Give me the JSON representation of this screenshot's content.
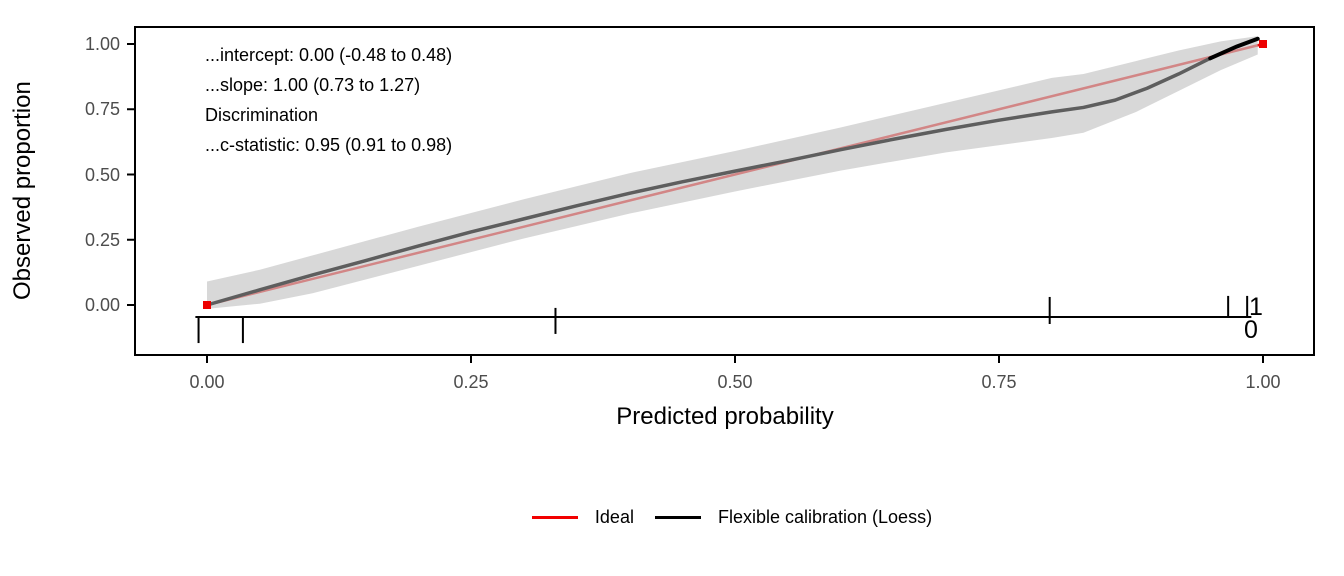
{
  "chart_data": {
    "type": "line",
    "title": "",
    "xlabel": "Predicted probability",
    "ylabel": "Observed proportion",
    "xlim": [
      0,
      1
    ],
    "ylim": [
      0,
      1
    ],
    "grid": "off",
    "legend_position": "bottom",
    "x_ticks": [
      {
        "value": 0.0,
        "label": "0.00"
      },
      {
        "value": 0.25,
        "label": "0.25"
      },
      {
        "value": 0.5,
        "label": "0.50"
      },
      {
        "value": 0.75,
        "label": "0.75"
      },
      {
        "value": 1.0,
        "label": "1.00"
      }
    ],
    "y_ticks": [
      {
        "value": 0.0,
        "label": "0.00"
      },
      {
        "value": 0.25,
        "label": "0.25"
      },
      {
        "value": 0.5,
        "label": "0.50"
      },
      {
        "value": 0.75,
        "label": "0.75"
      },
      {
        "value": 1.0,
        "label": "1.00"
      }
    ],
    "annotation": [
      "...intercept: 0.00 (-0.48 to 0.48)",
      "...slope: 1.00 (0.73 to 1.27)",
      "Discrimination",
      "...c-statistic: 0.95 (0.91 to 0.98)"
    ],
    "series": [
      {
        "name": "Ideal",
        "color": "#ed0000",
        "width": 2.5,
        "x": [
          0,
          1
        ],
        "y": [
          0,
          1
        ],
        "endpoints": [
          [
            0,
            0
          ],
          [
            1,
            1
          ]
        ]
      },
      {
        "name": "Flexible calibration (Loess)",
        "color": "#5e5e5e",
        "width": 3.5,
        "x": [
          0.0,
          0.05,
          0.1,
          0.15,
          0.2,
          0.25,
          0.3,
          0.35,
          0.4,
          0.45,
          0.5,
          0.55,
          0.6,
          0.65,
          0.7,
          0.75,
          0.8,
          0.83,
          0.86,
          0.89,
          0.92,
          0.95,
          0.975,
          0.995
        ],
        "y": [
          0.0,
          0.058,
          0.115,
          0.17,
          0.226,
          0.28,
          0.33,
          0.38,
          0.428,
          0.472,
          0.513,
          0.553,
          0.595,
          0.635,
          0.673,
          0.708,
          0.74,
          0.757,
          0.785,
          0.83,
          0.885,
          0.945,
          0.99,
          1.02
        ]
      }
    ],
    "tip_segment": {
      "color": "#000000",
      "width": 4,
      "x": [
        0.95,
        0.975,
        0.995
      ],
      "y": [
        0.945,
        0.99,
        1.02
      ]
    },
    "ci_band": {
      "color": "rgba(197,197,197,0.68)",
      "x": [
        0.0,
        0.05,
        0.1,
        0.2,
        0.3,
        0.4,
        0.5,
        0.6,
        0.7,
        0.8,
        0.83,
        0.88,
        0.92,
        0.96,
        0.995
      ],
      "upper": [
        0.09,
        0.135,
        0.19,
        0.3,
        0.405,
        0.505,
        0.59,
        0.68,
        0.775,
        0.87,
        0.885,
        0.935,
        0.975,
        1.01,
        1.03
      ],
      "lower": [
        -0.015,
        0.005,
        0.045,
        0.15,
        0.255,
        0.35,
        0.435,
        0.515,
        0.585,
        0.64,
        0.66,
        0.74,
        0.82,
        0.9,
        0.96
      ]
    },
    "rug": {
      "baseline": -0.046,
      "extent": [
        -0.011,
        0.989
      ],
      "event_label": "1",
      "nonevent_label": "0",
      "events": [
        {
          "x": 0.33,
          "h": 0.031
        },
        {
          "x": 0.798,
          "h": 0.073
        },
        {
          "x": 0.967,
          "h": 0.077
        },
        {
          "x": 0.985,
          "h": 0.077
        }
      ],
      "nonevents": [
        {
          "x": -0.008,
          "h": 0.096
        },
        {
          "x": 0.034,
          "h": 0.096
        },
        {
          "x": 0.33,
          "h": 0.061
        },
        {
          "x": 0.798,
          "h": 0.023
        }
      ]
    },
    "legend_items": [
      {
        "label": "Ideal",
        "color": "#f20000"
      },
      {
        "label": "Flexible calibration (Loess)",
        "color": "#000000"
      }
    ]
  }
}
